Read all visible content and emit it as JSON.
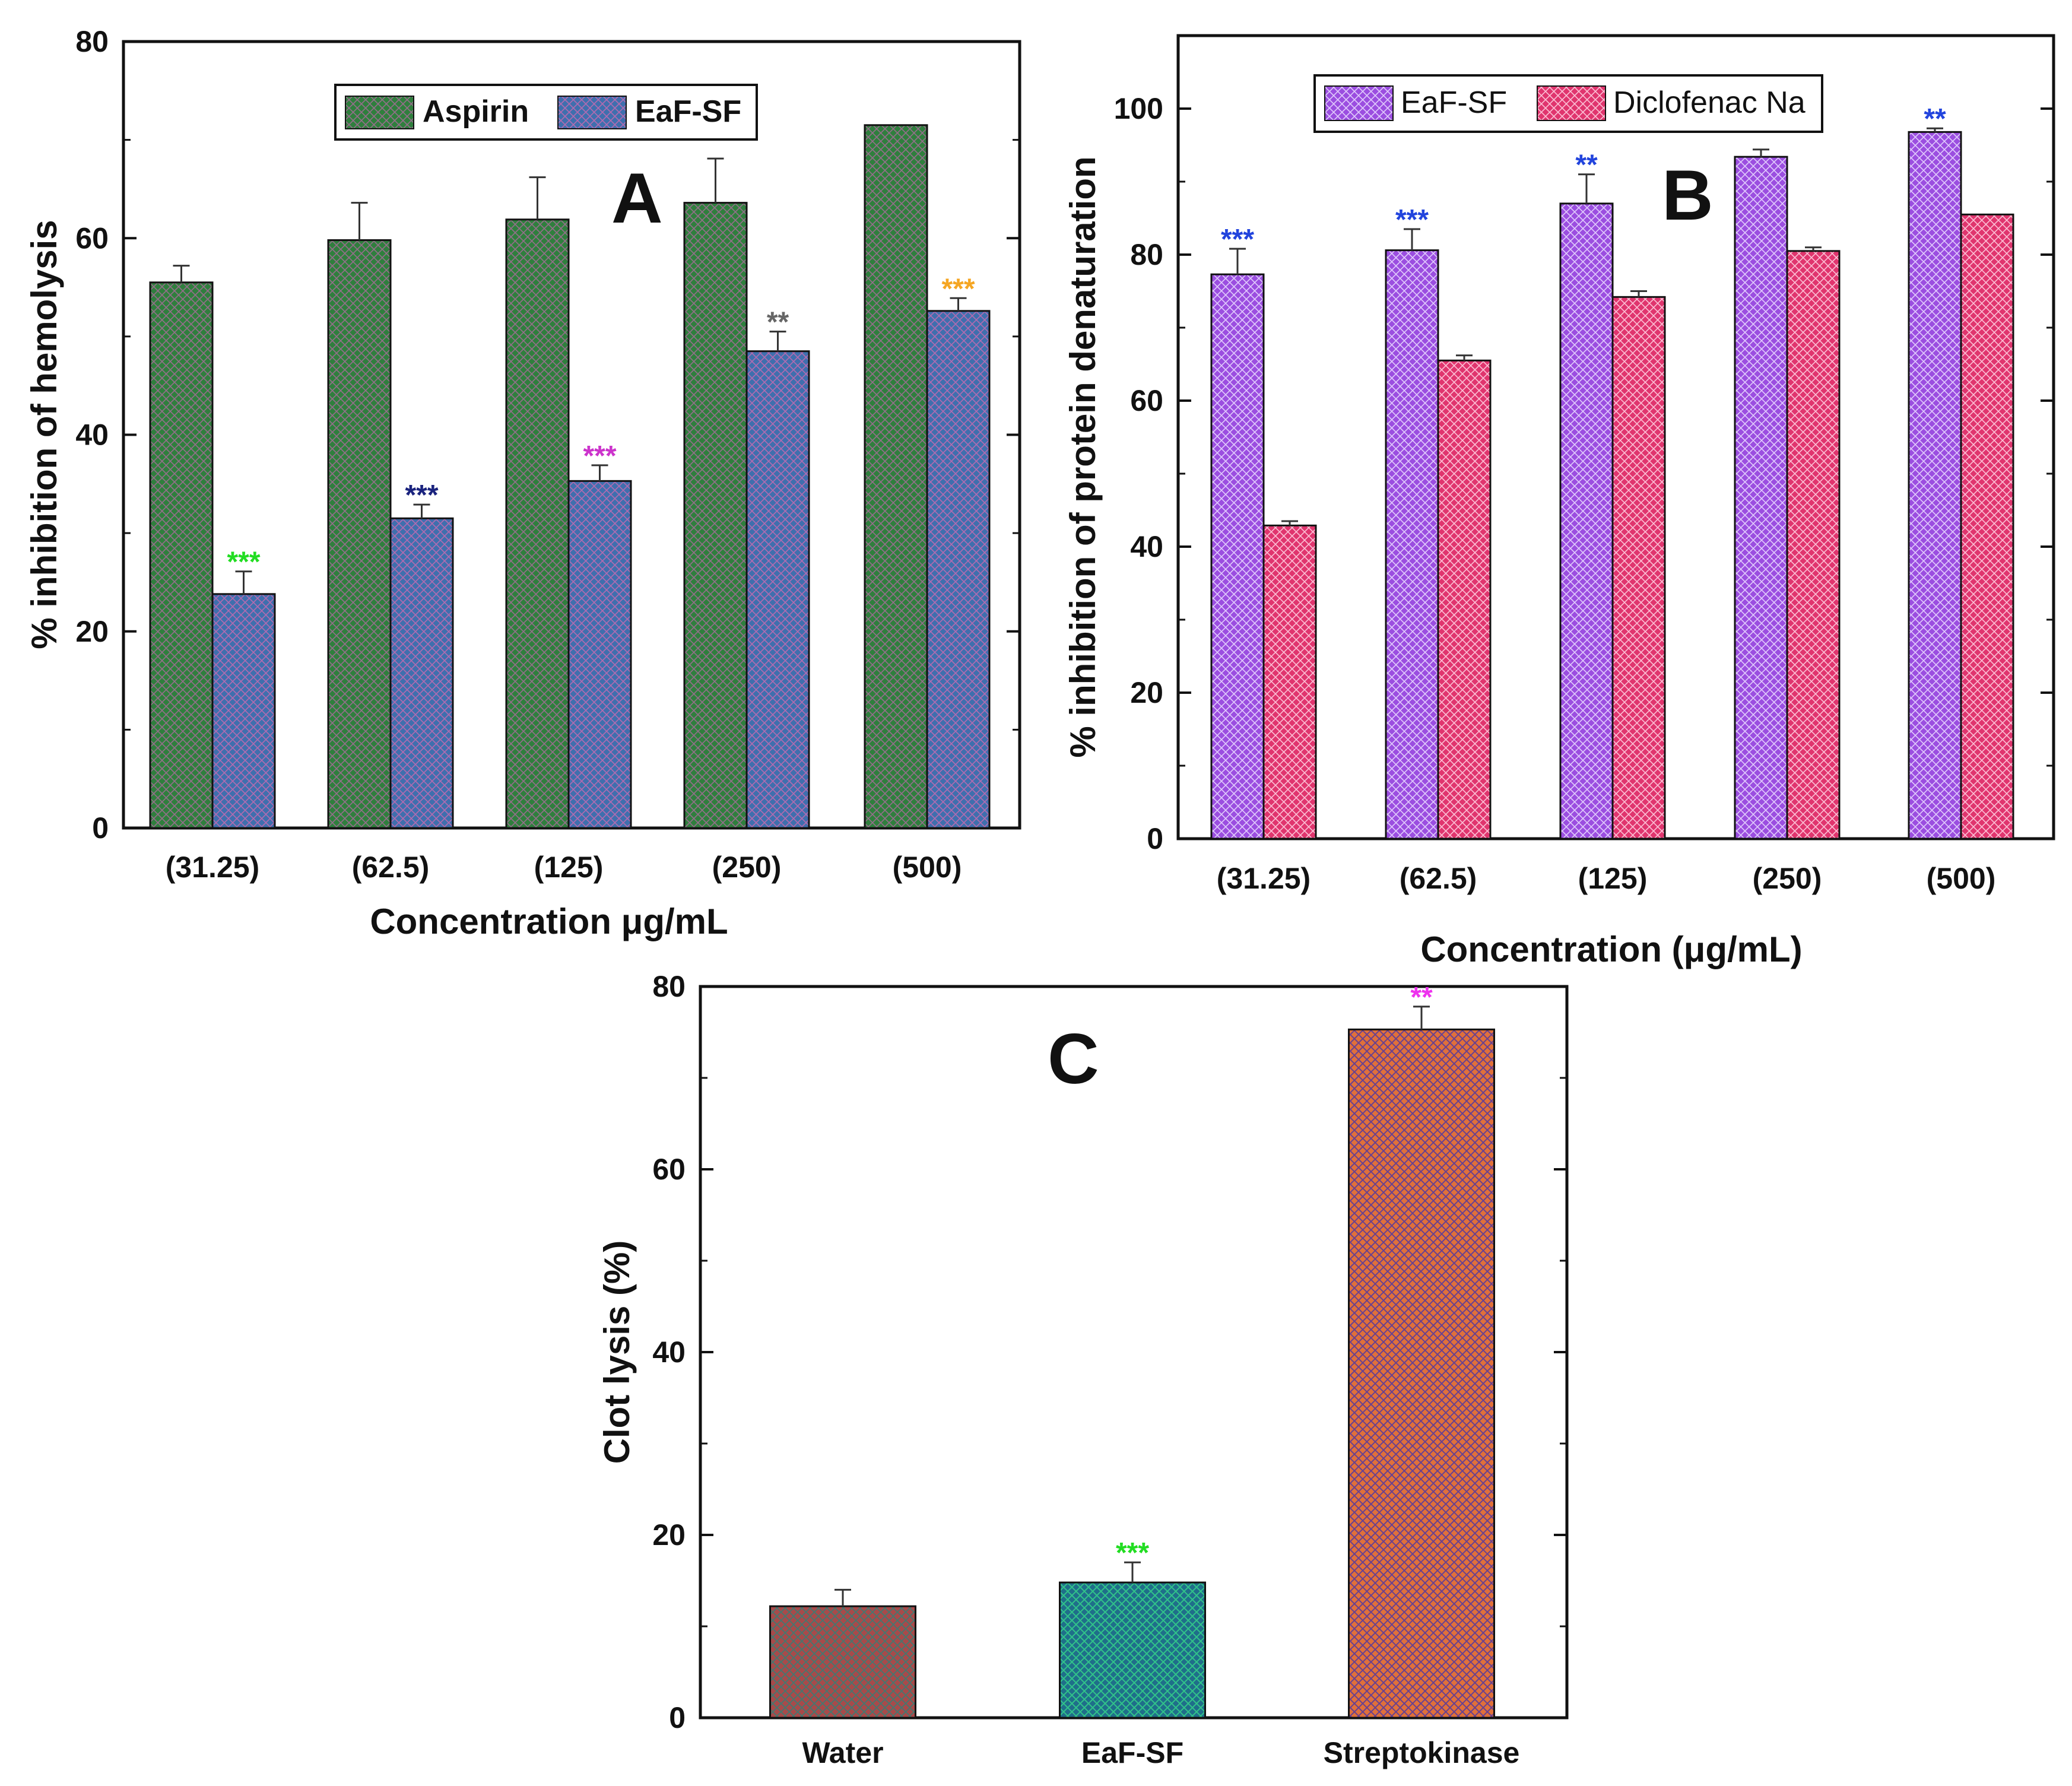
{
  "chart_data": [
    {
      "type": "bar",
      "panel_label": "A",
      "xlabel": "Concentration μg/mL",
      "ylabel": "% inhibition of hemolysis",
      "ylim": [
        0,
        80
      ],
      "yticks": [
        0,
        20,
        40,
        60,
        80
      ],
      "categories": [
        "(31.25)",
        "(62.5)",
        "(125)",
        "(250)",
        "(500)"
      ],
      "legend_position": "top-center",
      "series": [
        {
          "name": "Aspirin",
          "color": "#2f7f3d",
          "values": [
            55.5,
            59.8,
            61.9,
            63.6,
            71.5
          ],
          "errors": [
            1.7,
            3.8,
            4.3,
            4.5,
            0.2
          ],
          "significance": [
            "",
            "",
            "",
            "",
            ""
          ],
          "sig_colors": [
            "",
            "",
            "",
            "",
            ""
          ]
        },
        {
          "name": "EaF-SF",
          "color": "#3f6fae",
          "values": [
            23.8,
            31.5,
            35.3,
            48.5,
            52.6
          ],
          "errors": [
            2.3,
            1.4,
            1.6,
            2.0,
            1.3
          ],
          "significance": [
            "***",
            "***",
            "***",
            "**",
            "***"
          ],
          "sig_colors": [
            "#22dd22",
            "#1a237e",
            "#cc33cc",
            "#666666",
            "#f5a623"
          ]
        }
      ]
    },
    {
      "type": "bar",
      "panel_label": "B",
      "xlabel": "Concentration (μg/mL)",
      "ylabel": "% inhibition of protein denaturation",
      "ylim": [
        0,
        110
      ],
      "yticks": [
        0,
        20,
        40,
        60,
        80,
        100
      ],
      "categories": [
        "(31.25)",
        "(62.5)",
        "(125)",
        "(250)",
        "(500)"
      ],
      "legend_position": "top-left",
      "series": [
        {
          "name": "EaF-SF",
          "color": "#9b4ee0",
          "values": [
            77.3,
            80.6,
            87.0,
            93.4,
            96.8
          ],
          "errors": [
            3.5,
            2.9,
            4.0,
            1.0,
            0.5
          ],
          "significance": [
            "***",
            "***",
            "**",
            "",
            "**"
          ],
          "sig_colors": [
            "#2244dd",
            "#2244dd",
            "#2244dd",
            "",
            "#2244dd"
          ]
        },
        {
          "name": "Diclofenac Na",
          "color": "#e0356e",
          "values": [
            42.9,
            65.5,
            74.2,
            80.5,
            85.5
          ],
          "errors": [
            0.6,
            0.7,
            0.8,
            0.5,
            0.2
          ],
          "significance": [
            "",
            "",
            "",
            "",
            ""
          ],
          "sig_colors": [
            "",
            "",
            "",
            "",
            ""
          ]
        }
      ]
    },
    {
      "type": "bar",
      "panel_label": "C",
      "xlabel": "",
      "ylabel": "Clot lysis (%)",
      "ylim": [
        0,
        80
      ],
      "yticks": [
        0,
        20,
        40,
        60,
        80
      ],
      "categories": [
        "Water",
        "EaF-SF",
        "Streptokinase"
      ],
      "values": [
        12.2,
        14.8,
        75.3
      ],
      "errors": [
        1.8,
        2.2,
        2.5
      ],
      "colors": [
        "#a84a4a",
        "#1f6e8a",
        "#e0703a"
      ],
      "significance": [
        "",
        "***",
        "**"
      ],
      "sig_colors": [
        "",
        "#22dd22",
        "#ee33ee"
      ]
    }
  ]
}
